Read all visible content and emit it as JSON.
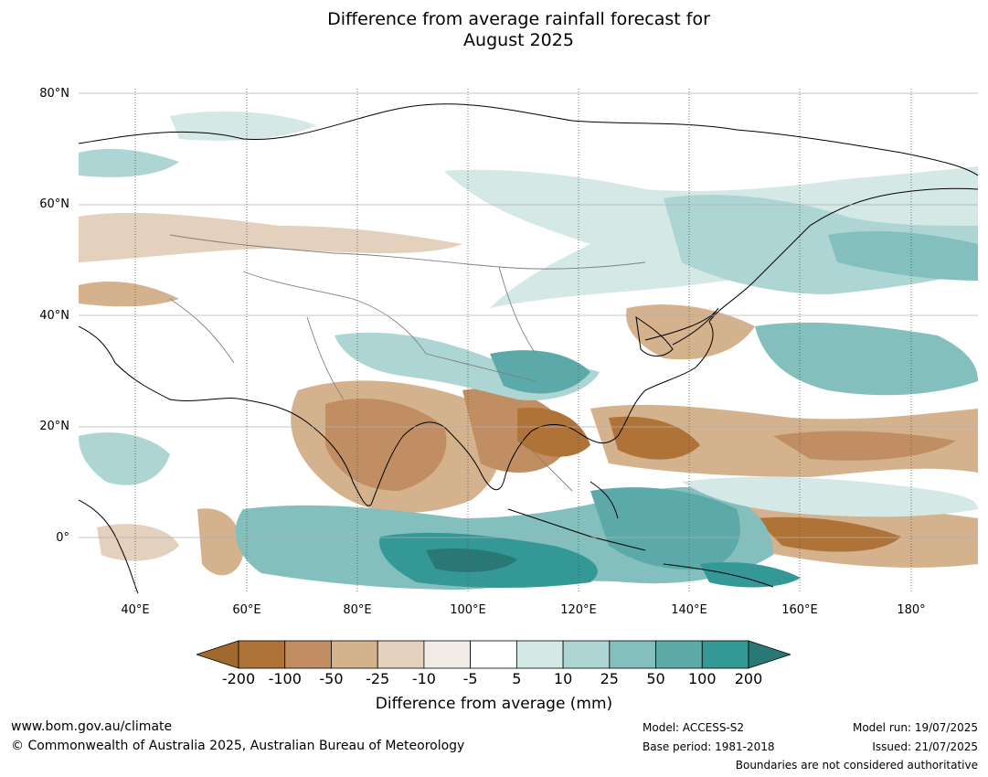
{
  "title_line1": "Difference from average rainfall forecast for",
  "title_line2": "August 2025",
  "lat_labels": [
    "80°N",
    "60°N",
    "40°N",
    "20°N",
    "0°"
  ],
  "lon_labels": [
    "40°E",
    "60°E",
    "80°E",
    "100°E",
    "120°E",
    "140°E",
    "160°E",
    "180°"
  ],
  "colorbar": {
    "ticks": [
      "-200",
      "-100",
      "-50",
      "-25",
      "-10",
      "-5",
      "5",
      "10",
      "25",
      "50",
      "100",
      "200"
    ],
    "colors": [
      "#a0692e",
      "#b07337",
      "#c08e62",
      "#d4b28e",
      "#e3d0bd",
      "#f1ece6",
      "#ffffff",
      "#d4e8e6",
      "#acd5d3",
      "#82bfbd",
      "#5ba9a8",
      "#349896",
      "#2a7876"
    ],
    "label": "Difference from average (mm)"
  },
  "footer": {
    "url": "www.bom.gov.au/climate",
    "copyright": "© Commonwealth of Australia 2025, Australian Bureau of Meteorology",
    "model": "Model: ACCESS-S2",
    "base_period": "Base period: 1981-2018",
    "model_run": "Model run: 19/07/2025",
    "issued": "Issued: 21/07/2025",
    "disclaimer": "Boundaries are not considered authoritative"
  }
}
